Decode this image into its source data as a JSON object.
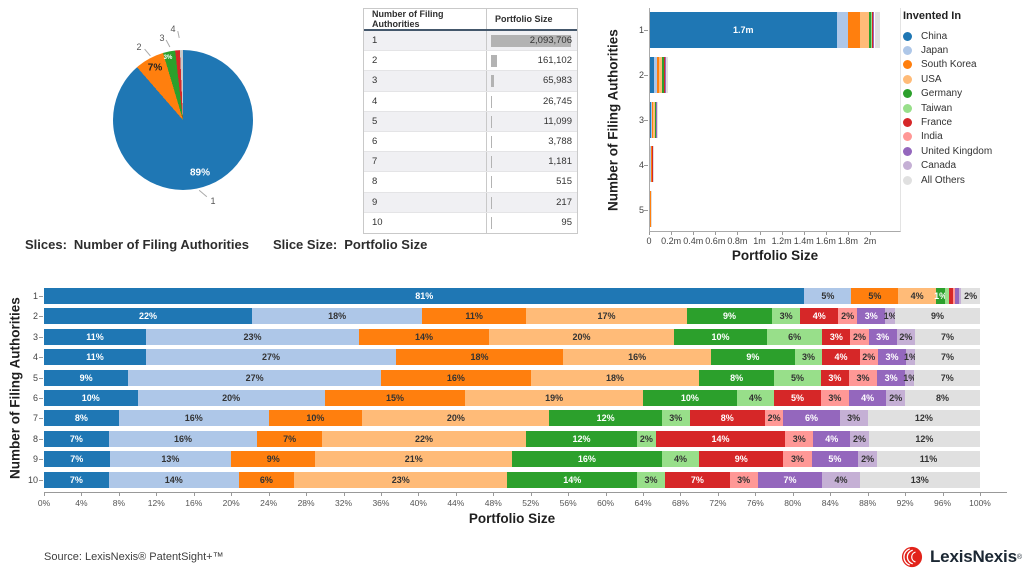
{
  "palette": {
    "China": "#1F77B4",
    "Japan": "#AEC7E8",
    "South Korea": "#FF7F0E",
    "USA": "#FFBB78",
    "Germany": "#2CA02C",
    "Taiwan": "#98DF8A",
    "France": "#D62728",
    "India": "#FF9896",
    "United Kingdom": "#9467BD",
    "Canada": "#C5B0D5",
    "All Others": "#E0E0E0"
  },
  "white_label_series": [
    "China",
    "Germany",
    "France",
    "United Kingdom"
  ],
  "legend": {
    "title": "Invented In",
    "items": [
      "China",
      "Japan",
      "South Korea",
      "USA",
      "Germany",
      "Taiwan",
      "France",
      "India",
      "United Kingdom",
      "Canada",
      "All Others"
    ]
  },
  "chart_data": [
    {
      "type": "pie",
      "caption": {
        "slices_label": "Slices:",
        "slices_value": "Number of Filing Authorities",
        "size_label": "Slice Size:",
        "size_value": "Portfolio Size"
      },
      "slices": [
        {
          "category": "1",
          "pct": 88.6,
          "label": "89%",
          "color": "#1F77B4"
        },
        {
          "category": "2",
          "pct": 6.8,
          "label": "7%",
          "color": "#FF7F0E"
        },
        {
          "category": "3",
          "pct": 2.8,
          "label": "3%",
          "color": "#2CA02C"
        },
        {
          "category": "4",
          "pct": 1.1,
          "label": "",
          "color": "#D62728"
        },
        {
          "category": "",
          "pct": 0.7,
          "label": "",
          "color": "#C9C9C9"
        }
      ]
    },
    {
      "type": "table",
      "columns": [
        "Number of Filing Authorities",
        "Portfolio Size"
      ],
      "bar_max": 2093706,
      "rows": [
        {
          "authorities": "1",
          "portfolio": "2,093,706",
          "value": 2093706
        },
        {
          "authorities": "2",
          "portfolio": "161,102",
          "value": 161102
        },
        {
          "authorities": "3",
          "portfolio": "65,983",
          "value": 65983
        },
        {
          "authorities": "4",
          "portfolio": "26,745",
          "value": 26745
        },
        {
          "authorities": "5",
          "portfolio": "11,099",
          "value": 11099
        },
        {
          "authorities": "6",
          "portfolio": "3,788",
          "value": 3788
        },
        {
          "authorities": "7",
          "portfolio": "1,181",
          "value": 1181
        },
        {
          "authorities": "8",
          "portfolio": "515",
          "value": 515
        },
        {
          "authorities": "9",
          "portfolio": "217",
          "value": 217
        },
        {
          "authorities": "10",
          "portfolio": "95",
          "value": 95
        }
      ]
    },
    {
      "type": "bar",
      "stacked": true,
      "orientation": "horizontal",
      "xlabel": "Portfolio Size",
      "ylabel": "Number of Filing Authorities",
      "categories": [
        "1",
        "2",
        "3",
        "4",
        "5"
      ],
      "totals": [
        2093706,
        161102,
        65983,
        26745,
        11099
      ],
      "axis_max": 2280000,
      "xtick_labels": [
        "0",
        "0.2m",
        "0.4m",
        "0.6m",
        "0.8m",
        "1m",
        "1.2m",
        "1.4m",
        "1.6m",
        "1.8m",
        "2m"
      ],
      "xtick_values": [
        0,
        200000,
        400000,
        600000,
        800000,
        1000000,
        1200000,
        1400000,
        1600000,
        1800000,
        2000000
      ],
      "bar_label": {
        "row": 0,
        "series": "China",
        "text": "1.7m"
      },
      "series": [
        {
          "name": "China",
          "pct": [
            81,
            22,
            11,
            11,
            9
          ]
        },
        {
          "name": "Japan",
          "pct": [
            5,
            18,
            23,
            27,
            27
          ]
        },
        {
          "name": "South Korea",
          "pct": [
            5,
            11,
            14,
            18,
            16
          ]
        },
        {
          "name": "USA",
          "pct": [
            4,
            17,
            20,
            16,
            18
          ]
        },
        {
          "name": "Germany",
          "pct": [
            1,
            9,
            10,
            9,
            8
          ]
        },
        {
          "name": "Taiwan",
          "pct": [
            0.4,
            3,
            6,
            3,
            5
          ]
        },
        {
          "name": "France",
          "pct": [
            0.4,
            4,
            3,
            4,
            3
          ]
        },
        {
          "name": "India",
          "pct": [
            0.2,
            2,
            2,
            2,
            3
          ]
        },
        {
          "name": "United Kingdom",
          "pct": [
            0.5,
            3,
            3,
            3,
            3
          ]
        },
        {
          "name": "Canada",
          "pct": [
            0.2,
            1,
            2,
            1,
            1
          ]
        },
        {
          "name": "All Others",
          "pct": [
            2,
            9,
            7,
            7,
            7
          ]
        }
      ]
    },
    {
      "type": "bar",
      "stacked": true,
      "percent": true,
      "orientation": "horizontal",
      "xlabel": "Portfolio Size",
      "ylabel": "Number of Filing Authorities",
      "categories": [
        "1",
        "2",
        "3",
        "4",
        "5",
        "6",
        "7",
        "8",
        "9",
        "10"
      ],
      "xtick_labels": [
        "0%",
        "4%",
        "8%",
        "12%",
        "16%",
        "20%",
        "24%",
        "28%",
        "32%",
        "36%",
        "40%",
        "44%",
        "48%",
        "52%",
        "56%",
        "60%",
        "64%",
        "68%",
        "72%",
        "76%",
        "80%",
        "84%",
        "88%",
        "92%",
        "96%",
        "100%"
      ],
      "series": [
        {
          "name": "China",
          "values": [
            81,
            22,
            11,
            11,
            9,
            10,
            8,
            7,
            7,
            7
          ]
        },
        {
          "name": "Japan",
          "values": [
            5,
            18,
            23,
            27,
            27,
            20,
            16,
            16,
            13,
            14
          ]
        },
        {
          "name": "South Korea",
          "values": [
            5,
            11,
            14,
            18,
            16,
            15,
            10,
            7,
            9,
            6
          ]
        },
        {
          "name": "USA",
          "values": [
            4,
            17,
            20,
            16,
            18,
            19,
            20,
            22,
            21,
            23
          ]
        },
        {
          "name": "Germany",
          "values": [
            1,
            9,
            10,
            9,
            8,
            10,
            12,
            12,
            16,
            14
          ]
        },
        {
          "name": "Taiwan",
          "values": [
            0.4,
            3,
            6,
            3,
            5,
            4,
            3,
            2,
            4,
            3
          ]
        },
        {
          "name": "France",
          "values": [
            0.4,
            4,
            3,
            4,
            3,
            5,
            8,
            14,
            9,
            7
          ]
        },
        {
          "name": "India",
          "values": [
            0.2,
            2,
            2,
            2,
            3,
            3,
            2,
            3,
            3,
            3
          ]
        },
        {
          "name": "United Kingdom",
          "values": [
            0.5,
            3,
            3,
            3,
            3,
            4,
            6,
            4,
            5,
            7
          ]
        },
        {
          "name": "Canada",
          "values": [
            0.2,
            1,
            2,
            1,
            1,
            2,
            3,
            2,
            2,
            4
          ]
        },
        {
          "name": "All Others",
          "values": [
            2,
            9,
            7,
            7,
            7,
            8,
            12,
            12,
            11,
            13
          ]
        }
      ]
    }
  ],
  "footer": {
    "source": "Source: LexisNexis® PatentSight+™",
    "brand": "LexisNexis",
    "registered": "®"
  }
}
